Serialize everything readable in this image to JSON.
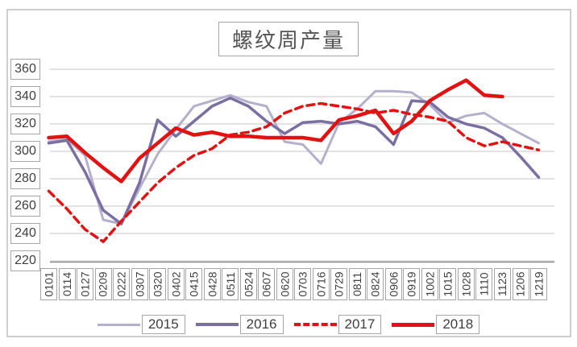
{
  "title": "螺纹周产量",
  "colors": {
    "series_2015": "#b4afca",
    "series_2016": "#7b6fa2",
    "series_2017": "#e11212",
    "series_2018": "#e11212",
    "gridline": "#d9d9d9",
    "axis_line": "#8c8c8c",
    "label_border": "#a6a6a6",
    "text": "#3f3f3f"
  },
  "y_axis_ticks": [
    "360",
    "340",
    "320",
    "300",
    "280",
    "260",
    "240",
    "220"
  ],
  "chart_data": {
    "type": "line",
    "title": "螺纹周产量",
    "categories": [
      "0101",
      "0114",
      "0127",
      "0209",
      "0222",
      "0307",
      "0320",
      "0402",
      "0415",
      "0428",
      "0511",
      "0524",
      "0607",
      "0620",
      "0703",
      "0716",
      "0729",
      "0811",
      "0824",
      "0906",
      "0919",
      "1002",
      "1015",
      "1028",
      "1110",
      "1123",
      "1206",
      "1219"
    ],
    "ylim": [
      220,
      360
    ],
    "ytick_step": 20,
    "grid": true,
    "legend_position": "bottom",
    "series": [
      {
        "name": "2015",
        "color": "#b4afca",
        "width": 3,
        "dash": null,
        "values": [
          307,
          309,
          297,
          250,
          247,
          273,
          298,
          316,
          333,
          337,
          341,
          336,
          333,
          307,
          305,
          291,
          321,
          331,
          344,
          344,
          343,
          334,
          321,
          326,
          328,
          320,
          313,
          306
        ]
      },
      {
        "name": "2016",
        "color": "#7b6fa2",
        "width": 3.5,
        "dash": null,
        "values": [
          306,
          308,
          285,
          257,
          247,
          277,
          323,
          311,
          322,
          333,
          339,
          333,
          322,
          313,
          321,
          322,
          320,
          322,
          318,
          305,
          337,
          336,
          325,
          320,
          317,
          310,
          296,
          281
        ]
      },
      {
        "name": "2017",
        "color": "#e11212",
        "width": 3.5,
        "dash": "9,6",
        "values": [
          271,
          258,
          243,
          234,
          249,
          263,
          277,
          288,
          297,
          302,
          312,
          314,
          318,
          328,
          333,
          335,
          333,
          331,
          328,
          330,
          327,
          325,
          322,
          310,
          304,
          307,
          304,
          301
        ]
      },
      {
        "name": "2018",
        "color": "#e11212",
        "width": 4.5,
        "dash": null,
        "values": [
          310,
          311,
          299,
          288,
          278,
          295,
          306,
          317,
          312,
          314,
          311,
          311,
          310,
          310,
          310,
          308,
          323,
          326,
          330,
          313,
          322,
          337,
          345,
          352,
          341,
          340,
          null,
          null
        ]
      }
    ]
  }
}
